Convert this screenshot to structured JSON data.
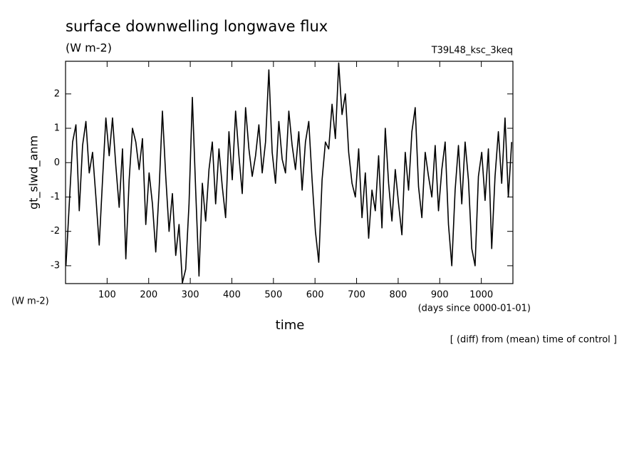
{
  "chart_data": {
    "type": "line",
    "title": "surface downwelling longwave flux",
    "subtitle": "(W m-2)",
    "run_label": "T39L48_ksc_3keq",
    "y_label": "gt_slwd_anm",
    "y_unit": "(W m-2)",
    "x_unit": "(days since 0000-01-01)",
    "x_label": "time",
    "note": "[ (diff) from (mean) time of control ]",
    "xlim": [
      0,
      1076
    ],
    "ylim": [
      -3.52,
      2.95
    ],
    "xticks": [
      100,
      200,
      300,
      400,
      500,
      600,
      700,
      800,
      900,
      1000
    ],
    "yticks": [
      -3,
      -2,
      -1,
      0,
      1,
      2
    ],
    "grid": false,
    "x": [
      1,
      9,
      17,
      25,
      33,
      41,
      49,
      57,
      65,
      73,
      81,
      89,
      97,
      105,
      113,
      121,
      129,
      137,
      145,
      153,
      161,
      169,
      177,
      185,
      193,
      201,
      209,
      217,
      225,
      233,
      241,
      249,
      257,
      265,
      273,
      281,
      289,
      297,
      305,
      313,
      321,
      329,
      337,
      345,
      353,
      361,
      369,
      377,
      385,
      393,
      401,
      409,
      417,
      425,
      433,
      441,
      449,
      457,
      465,
      473,
      481,
      489,
      497,
      505,
      513,
      521,
      529,
      537,
      545,
      553,
      561,
      569,
      577,
      585,
      593,
      601,
      609,
      617,
      625,
      633,
      641,
      649,
      657,
      665,
      673,
      681,
      689,
      697,
      705,
      713,
      721,
      729,
      737,
      745,
      753,
      761,
      769,
      777,
      785,
      793,
      801,
      809,
      817,
      825,
      833,
      841,
      849,
      857,
      865,
      873,
      881,
      889,
      897,
      905,
      913,
      921,
      929,
      937,
      945,
      953,
      961,
      969,
      977,
      985,
      993,
      1001,
      1009,
      1017,
      1025,
      1033,
      1041,
      1049,
      1057,
      1065,
      1073
    ],
    "series": [
      {
        "color": "#000000",
        "values": [
          -3.0,
          -1.2,
          0.6,
          1.1,
          -1.4,
          0.5,
          1.2,
          -0.3,
          0.3,
          -1.0,
          -2.4,
          -0.5,
          1.3,
          0.2,
          1.3,
          -0.1,
          -1.3,
          0.4,
          -2.8,
          -0.5,
          1.0,
          0.6,
          -0.2,
          0.7,
          -1.8,
          -0.3,
          -1.2,
          -2.6,
          -0.8,
          1.5,
          -0.4,
          -2.0,
          -0.9,
          -2.7,
          -1.8,
          -3.5,
          -3.1,
          -1.2,
          1.9,
          -0.8,
          -3.3,
          -0.6,
          -1.7,
          -0.2,
          0.6,
          -1.2,
          0.4,
          -0.7,
          -1.6,
          0.9,
          -0.5,
          1.5,
          0.2,
          -0.9,
          1.6,
          0.4,
          -0.4,
          0.2,
          1.1,
          -0.3,
          0.6,
          2.7,
          0.3,
          -0.6,
          1.2,
          0.1,
          -0.3,
          1.5,
          0.5,
          -0.2,
          0.9,
          -0.8,
          0.6,
          1.2,
          -0.5,
          -2.0,
          -2.9,
          -0.5,
          0.6,
          0.4,
          1.7,
          0.7,
          2.9,
          1.4,
          2.0,
          0.3,
          -0.6,
          -1.0,
          0.4,
          -1.6,
          -0.3,
          -2.2,
          -0.8,
          -1.4,
          0.2,
          -1.9,
          1.0,
          -0.6,
          -1.7,
          -0.2,
          -1.2,
          -2.1,
          0.3,
          -0.8,
          0.9,
          1.6,
          -0.7,
          -1.6,
          0.3,
          -0.4,
          -1.0,
          0.5,
          -1.4,
          -0.2,
          0.6,
          -1.8,
          -3.0,
          -0.8,
          0.5,
          -1.2,
          0.6,
          -0.5,
          -2.5,
          -3.0,
          -0.4,
          0.3,
          -1.1,
          0.4,
          -2.5,
          -0.4,
          0.9,
          -0.6,
          1.3,
          -1.0,
          0.6
        ]
      }
    ]
  }
}
